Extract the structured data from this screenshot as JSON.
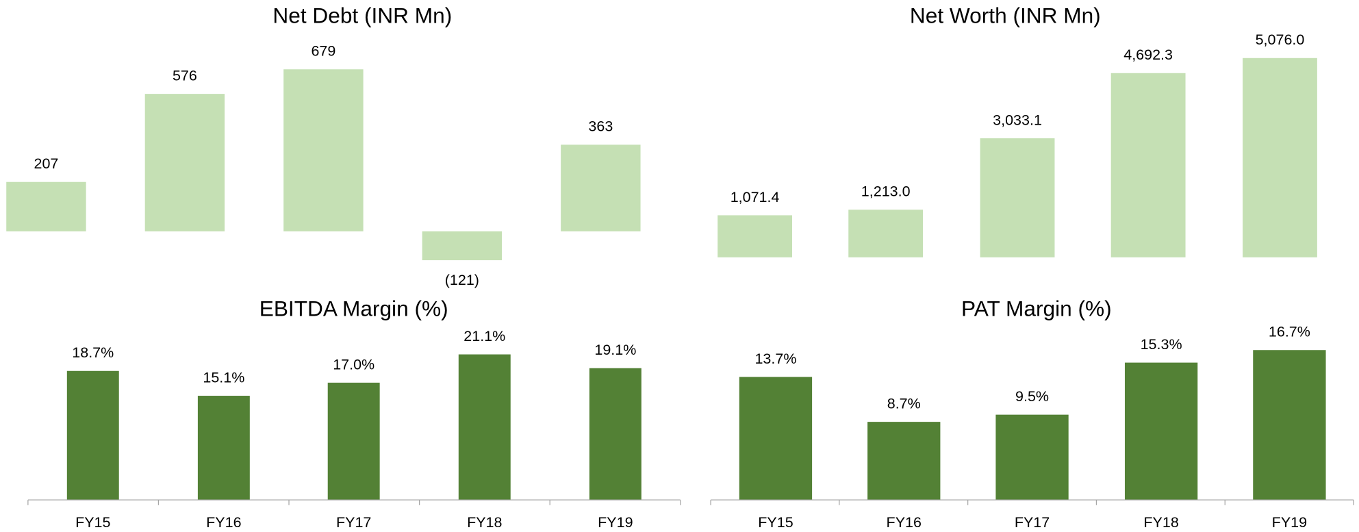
{
  "chart_data": [
    {
      "type": "bar",
      "title": "Net Debt (INR Mn)",
      "color": "#c5e0b4",
      "values": [
        207,
        576,
        679,
        -121,
        363
      ],
      "value_labels": [
        "207",
        "576",
        "679",
        "(121)",
        "363"
      ]
    },
    {
      "type": "bar",
      "title": "Net Worth (INR Mn)",
      "color": "#c5e0b4",
      "values": [
        1071.4,
        1213.0,
        3033.1,
        4692.3,
        5076.0
      ],
      "value_labels": [
        "1,071.4",
        "1,213.0",
        "3,033.1",
        "4,692.3",
        "5,076.0"
      ]
    },
    {
      "type": "bar",
      "title": "EBITDA Margin (%)",
      "color": "#538135",
      "categories": [
        "FY15",
        "FY16",
        "FY17",
        "FY18",
        "FY19"
      ],
      "values": [
        18.7,
        15.1,
        17.0,
        21.1,
        19.1
      ],
      "value_labels": [
        "18.7%",
        "15.1%",
        "17.0%",
        "21.1%",
        "19.1%"
      ]
    },
    {
      "type": "bar",
      "title": "PAT Margin (%)",
      "color": "#538135",
      "categories": [
        "FY15",
        "FY16",
        "FY17",
        "FY18",
        "FY19"
      ],
      "values": [
        13.7,
        8.7,
        9.5,
        15.3,
        16.7
      ],
      "value_labels": [
        "13.7%",
        "8.7%",
        "9.5%",
        "15.3%",
        "16.7%"
      ]
    }
  ]
}
